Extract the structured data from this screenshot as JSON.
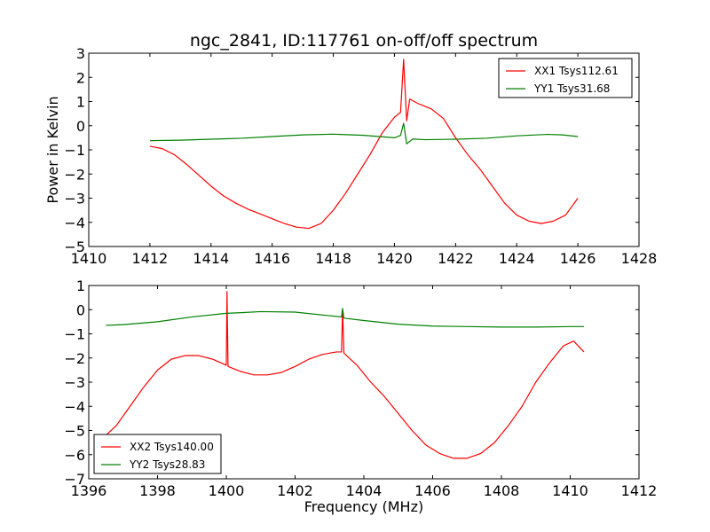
{
  "chart_data": [
    {
      "type": "line",
      "title": "ngc_2841, ID:117761 on-off/off spectrum",
      "ylabel": "Power in Kelvin",
      "xlabel": "",
      "xlim": [
        1410,
        1428
      ],
      "ylim": [
        -5,
        3
      ],
      "xticks": [
        "1410",
        "1412",
        "1414",
        "1416",
        "1418",
        "1420",
        "1422",
        "1424",
        "1426",
        "1428"
      ],
      "yticks": [
        "−5",
        "−4",
        "−3",
        "−2",
        "−1",
        "0",
        "1",
        "2",
        "3"
      ],
      "grid": false,
      "legend_position": "top-right",
      "series": [
        {
          "name": "XX1 Tsys112.61",
          "color": "#ff0000",
          "points": [
            [
              1412.0,
              -0.85
            ],
            [
              1412.4,
              -0.95
            ],
            [
              1412.8,
              -1.2
            ],
            [
              1413.2,
              -1.6
            ],
            [
              1413.6,
              -2.05
            ],
            [
              1414.0,
              -2.5
            ],
            [
              1414.4,
              -2.9
            ],
            [
              1414.8,
              -3.2
            ],
            [
              1415.2,
              -3.45
            ],
            [
              1415.6,
              -3.65
            ],
            [
              1416.0,
              -3.85
            ],
            [
              1416.4,
              -4.05
            ],
            [
              1416.8,
              -4.2
            ],
            [
              1417.2,
              -4.25
            ],
            [
              1417.6,
              -4.05
            ],
            [
              1418.0,
              -3.5
            ],
            [
              1418.4,
              -2.8
            ],
            [
              1418.8,
              -2.0
            ],
            [
              1419.2,
              -1.2
            ],
            [
              1419.6,
              -0.3
            ],
            [
              1420.0,
              0.35
            ],
            [
              1420.2,
              0.55
            ],
            [
              1420.3,
              2.75
            ],
            [
              1420.4,
              0.2
            ],
            [
              1420.5,
              1.1
            ],
            [
              1420.8,
              0.9
            ],
            [
              1421.2,
              0.7
            ],
            [
              1421.6,
              0.3
            ],
            [
              1422.0,
              -0.5
            ],
            [
              1422.4,
              -1.2
            ],
            [
              1422.8,
              -1.8
            ],
            [
              1423.2,
              -2.5
            ],
            [
              1423.6,
              -3.2
            ],
            [
              1424.0,
              -3.7
            ],
            [
              1424.4,
              -3.95
            ],
            [
              1424.8,
              -4.05
            ],
            [
              1425.2,
              -3.95
            ],
            [
              1425.6,
              -3.7
            ],
            [
              1426.0,
              -3.0
            ]
          ]
        },
        {
          "name": "YY1 Tsys31.68",
          "color": "#008000",
          "points": [
            [
              1412.0,
              -0.62
            ],
            [
              1413.0,
              -0.6
            ],
            [
              1414.0,
              -0.56
            ],
            [
              1415.0,
              -0.52
            ],
            [
              1416.0,
              -0.45
            ],
            [
              1417.0,
              -0.38
            ],
            [
              1418.0,
              -0.35
            ],
            [
              1419.0,
              -0.4
            ],
            [
              1420.0,
              -0.5
            ],
            [
              1420.2,
              -0.4
            ],
            [
              1420.3,
              0.1
            ],
            [
              1420.4,
              -0.75
            ],
            [
              1420.6,
              -0.55
            ],
            [
              1421.0,
              -0.58
            ],
            [
              1422.0,
              -0.56
            ],
            [
              1423.0,
              -0.52
            ],
            [
              1424.0,
              -0.42
            ],
            [
              1425.0,
              -0.36
            ],
            [
              1425.5,
              -0.38
            ],
            [
              1426.0,
              -0.45
            ]
          ]
        }
      ]
    },
    {
      "type": "line",
      "title": "",
      "xlabel": "Frequency (MHz)",
      "ylabel": "",
      "xlim": [
        1396,
        1412
      ],
      "ylim": [
        -7,
        1
      ],
      "xticks": [
        "1396",
        "1398",
        "1400",
        "1402",
        "1404",
        "1406",
        "1408",
        "1410",
        "1412"
      ],
      "yticks": [
        "−7",
        "−6",
        "−5",
        "−4",
        "−3",
        "−2",
        "−1",
        "0",
        "1"
      ],
      "grid": false,
      "legend_position": "bottom-left",
      "series": [
        {
          "name": "XX2 Tsys140.00",
          "color": "#ff0000",
          "points": [
            [
              1396.5,
              -5.2
            ],
            [
              1396.8,
              -4.8
            ],
            [
              1397.2,
              -4.0
            ],
            [
              1397.6,
              -3.2
            ],
            [
              1398.0,
              -2.5
            ],
            [
              1398.4,
              -2.05
            ],
            [
              1398.8,
              -1.9
            ],
            [
              1399.2,
              -1.9
            ],
            [
              1399.6,
              -2.05
            ],
            [
              1400.0,
              -2.3
            ],
            [
              1400.02,
              0.75
            ],
            [
              1400.05,
              -2.35
            ],
            [
              1400.4,
              -2.55
            ],
            [
              1400.8,
              -2.7
            ],
            [
              1401.2,
              -2.7
            ],
            [
              1401.6,
              -2.6
            ],
            [
              1402.0,
              -2.35
            ],
            [
              1402.4,
              -2.05
            ],
            [
              1402.8,
              -1.85
            ],
            [
              1403.2,
              -1.75
            ],
            [
              1403.35,
              -1.75
            ],
            [
              1403.38,
              0.0
            ],
            [
              1403.42,
              -1.8
            ],
            [
              1403.8,
              -2.3
            ],
            [
              1404.2,
              -3.0
            ],
            [
              1404.6,
              -3.6
            ],
            [
              1405.0,
              -4.3
            ],
            [
              1405.4,
              -5.0
            ],
            [
              1405.8,
              -5.6
            ],
            [
              1406.2,
              -5.95
            ],
            [
              1406.6,
              -6.15
            ],
            [
              1407.0,
              -6.15
            ],
            [
              1407.4,
              -5.95
            ],
            [
              1407.8,
              -5.5
            ],
            [
              1408.2,
              -4.8
            ],
            [
              1408.6,
              -4.0
            ],
            [
              1409.0,
              -3.0
            ],
            [
              1409.4,
              -2.2
            ],
            [
              1409.8,
              -1.5
            ],
            [
              1410.1,
              -1.3
            ],
            [
              1410.4,
              -1.75
            ]
          ]
        },
        {
          "name": "YY2 Tsys28.83",
          "color": "#008000",
          "points": [
            [
              1396.5,
              -0.65
            ],
            [
              1397.0,
              -0.62
            ],
            [
              1398.0,
              -0.5
            ],
            [
              1399.0,
              -0.3
            ],
            [
              1400.0,
              -0.15
            ],
            [
              1400.5,
              -0.12
            ],
            [
              1401.0,
              -0.08
            ],
            [
              1402.0,
              -0.1
            ],
            [
              1403.0,
              -0.25
            ],
            [
              1403.35,
              -0.3
            ],
            [
              1403.38,
              0.05
            ],
            [
              1403.42,
              -0.35
            ],
            [
              1404.0,
              -0.45
            ],
            [
              1405.0,
              -0.6
            ],
            [
              1406.0,
              -0.68
            ],
            [
              1407.0,
              -0.7
            ],
            [
              1408.0,
              -0.72
            ],
            [
              1409.0,
              -0.72
            ],
            [
              1410.0,
              -0.7
            ],
            [
              1410.4,
              -0.7
            ]
          ]
        }
      ]
    }
  ]
}
